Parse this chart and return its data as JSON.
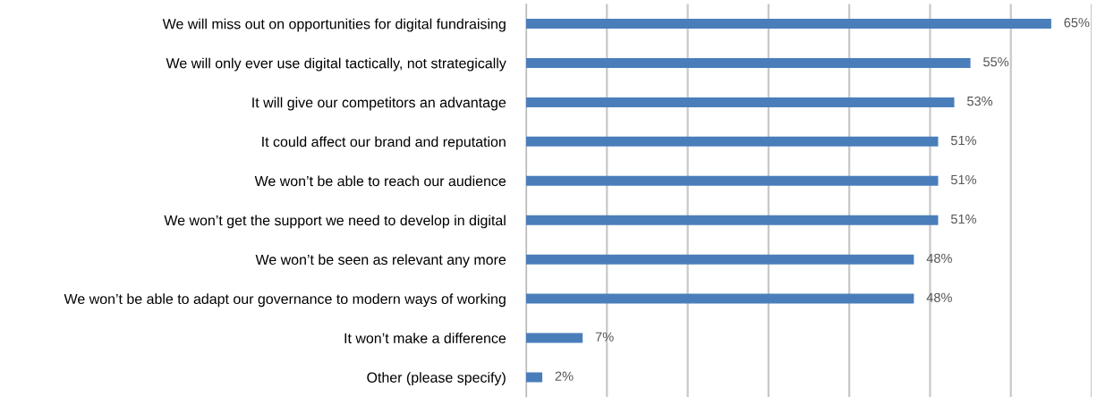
{
  "chart_data": {
    "type": "bar",
    "orientation": "horizontal",
    "categories": [
      "We will miss out on opportunities for digital fundraising",
      "We will only ever use digital tactically, not strategically",
      "It will give our competitors an advantage",
      "It could affect our brand and reputation",
      "We won’t be able to reach our audience",
      "We won’t get the support we need to develop in digital",
      "We won’t be seen as relevant any more",
      "We won’t be able to adapt our governance to modern ways of working",
      "It won’t make a difference",
      "Other (please specify)"
    ],
    "values": [
      65,
      55,
      53,
      51,
      51,
      51,
      48,
      48,
      7,
      2
    ],
    "value_labels": [
      "65%",
      "55%",
      "53%",
      "51%",
      "51%",
      "51%",
      "48%",
      "48%",
      "7%",
      "2%"
    ],
    "color": "#4a7ebb",
    "xlim": [
      0,
      70
    ],
    "xticks": [
      {
        "value": 0,
        "label": null
      },
      {
        "value": 10,
        "label": null
      },
      {
        "value": 20,
        "label": null
      },
      {
        "value": 30,
        "label": null
      },
      {
        "value": 40,
        "label": null
      },
      {
        "value": 50,
        "label": null
      },
      {
        "value": 60,
        "label": null
      },
      {
        "value": 70,
        "label": null
      }
    ],
    "tick_labels": "y",
    "grid": "x",
    "legend": false
  }
}
